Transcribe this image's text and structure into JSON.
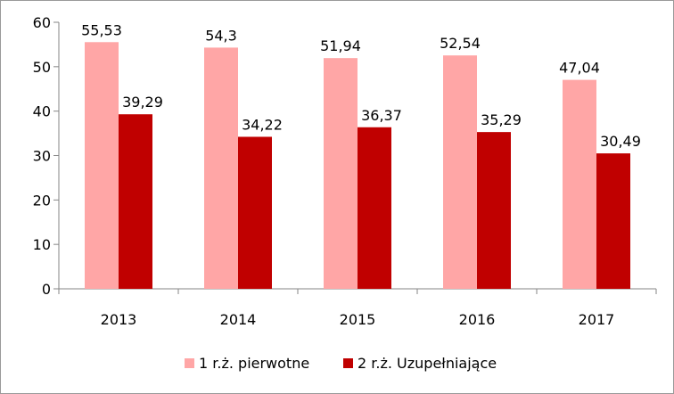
{
  "chart_data": {
    "type": "bar",
    "categories": [
      "2013",
      "2014",
      "2015",
      "2016",
      "2017"
    ],
    "series": [
      {
        "name": "1 r.ż. pierwotne",
        "values": [
          55.53,
          54.3,
          51.94,
          52.54,
          47.04
        ],
        "labels": [
          "55,53",
          "54,3",
          "51,94",
          "52,54",
          "47,04"
        ],
        "color": "#ffa6a6"
      },
      {
        "name": "2 r.ż. Uzupełniające",
        "values": [
          39.29,
          34.22,
          36.37,
          35.29,
          30.49
        ],
        "labels": [
          "39,29",
          "34,22",
          "36,37",
          "35,29",
          "30,49"
        ],
        "color": "#c00000"
      }
    ],
    "title": "",
    "xlabel": "",
    "ylabel": "",
    "ylim": [
      0,
      60
    ],
    "yticks": [
      0,
      10,
      20,
      30,
      40,
      50,
      60
    ],
    "grid": false,
    "legend_position": "bottom"
  }
}
